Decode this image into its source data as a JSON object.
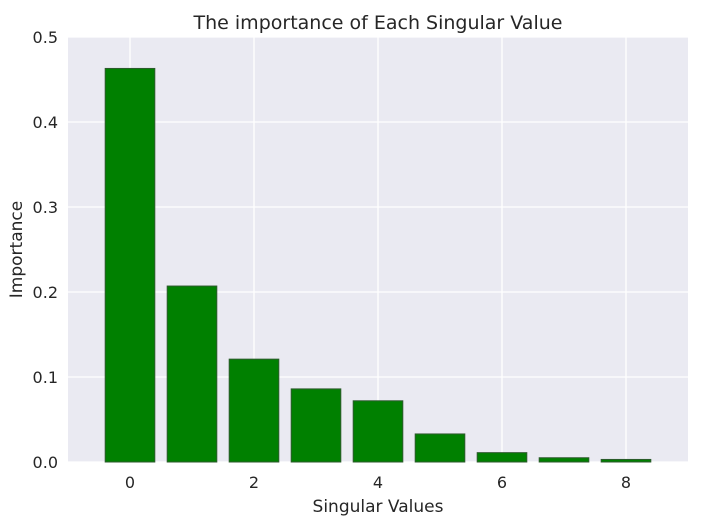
{
  "chart_data": {
    "type": "bar",
    "title": "The importance of Each Singular Value",
    "xlabel": "Singular Values",
    "ylabel": "Importance",
    "x": [
      0,
      1,
      2,
      3,
      4,
      5,
      6,
      7,
      8
    ],
    "values": [
      0.463,
      0.207,
      0.121,
      0.086,
      0.072,
      0.033,
      0.011,
      0.005,
      0.003
    ],
    "xticks": [
      0,
      2,
      4,
      6,
      8
    ],
    "xtick_labels": [
      "0",
      "2",
      "4",
      "6",
      "8"
    ],
    "yticks": [
      0.0,
      0.1,
      0.2,
      0.3,
      0.4,
      0.5
    ],
    "ytick_labels": [
      "0.0",
      "0.1",
      "0.2",
      "0.3",
      "0.4",
      "0.5"
    ],
    "xlim": [
      -1,
      9
    ],
    "ylim": [
      0,
      0.5
    ],
    "grid": true,
    "bar_color": "#008000",
    "bar_edge_color": "#2d5a2d",
    "background_color": "#eaeaf2",
    "grid_color": "#ffffff"
  }
}
